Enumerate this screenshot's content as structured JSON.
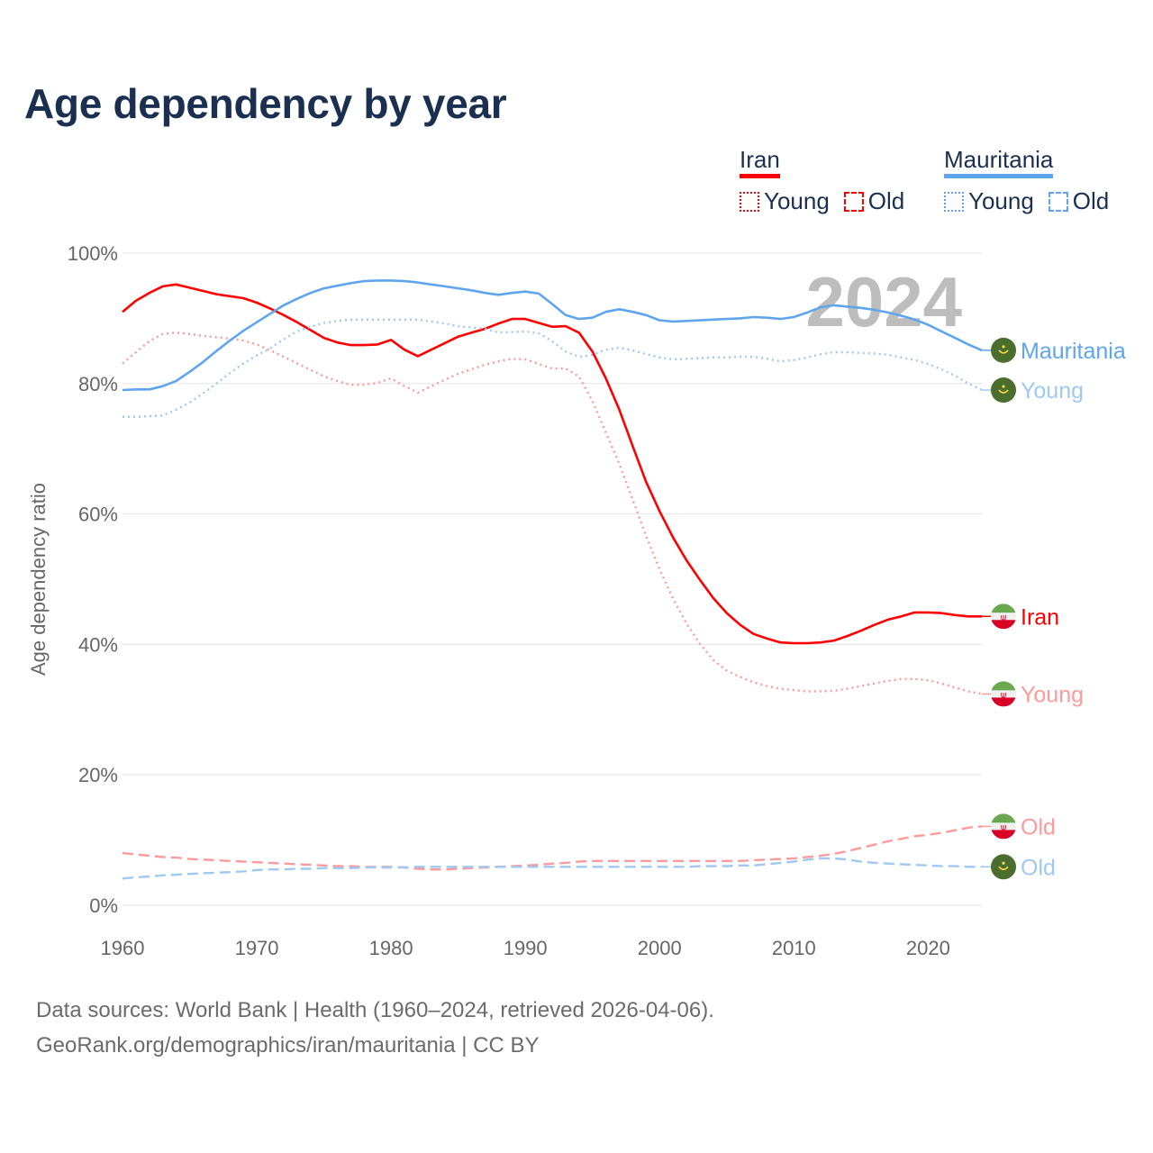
{
  "title": "Age dependency by year",
  "legend": {
    "groups": [
      {
        "name": "Iran",
        "color": "#ff0000",
        "items": [
          "Young",
          "Old"
        ]
      },
      {
        "name": "Mauritania",
        "color": "#5ea5ee",
        "items": [
          "Young",
          "Old"
        ]
      }
    ]
  },
  "footer": {
    "line1": "Data sources: World Bank | Health (1960–2024, retrieved 2026-04-06).",
    "line2": "GeoRank.org/demographics/iran/mauritania | CC BY"
  },
  "chart_data": {
    "type": "line",
    "title": "Age dependency by year",
    "xlabel": "",
    "ylabel": "Age dependency ratio",
    "year_watermark": "2024",
    "xlim": [
      1960,
      2024
    ],
    "ylim": [
      0,
      100
    ],
    "x_ticks": [
      "1960",
      "1970",
      "1980",
      "1990",
      "2000",
      "2010",
      "2020"
    ],
    "y_ticks": [
      "0%",
      "20%",
      "40%",
      "60%",
      "80%",
      "100%"
    ],
    "grid": true,
    "legend_position": "top-right",
    "x_start": 1960,
    "series": [
      {
        "name": "Iran",
        "label": "Iran",
        "country": "Iran",
        "style": "solid",
        "color": "#ff0000",
        "values": [
          91.0,
          92.7,
          93.9,
          94.9,
          95.2,
          94.7,
          94.2,
          93.7,
          93.4,
          93.1,
          92.4,
          91.5,
          90.5,
          89.4,
          88.2,
          87.0,
          86.3,
          85.9,
          85.9,
          86.0,
          86.7,
          85.2,
          84.2,
          85.2,
          86.2,
          87.2,
          87.8,
          88.4,
          89.2,
          89.9,
          89.9,
          89.3,
          88.7,
          88.8,
          87.8,
          84.9,
          80.8,
          76.0,
          70.4,
          64.9,
          60.4,
          56.4,
          52.9,
          49.9,
          47.1,
          44.8,
          43.0,
          41.6,
          40.9,
          40.3,
          40.2,
          40.2,
          40.3,
          40.6,
          41.3,
          42.1,
          43.0,
          43.8,
          44.3,
          44.9,
          44.9,
          44.8,
          44.5,
          44.3,
          44.3
        ]
      },
      {
        "name": "Iran Young",
        "label": "Young",
        "country": "Iran",
        "style": "dotted",
        "color": "#ff9a9a",
        "values": [
          83.1,
          84.8,
          86.5,
          87.6,
          87.8,
          87.6,
          87.3,
          87.1,
          86.9,
          86.6,
          86.0,
          85.1,
          84.1,
          83.1,
          82.1,
          81.1,
          80.4,
          79.8,
          79.8,
          80.1,
          80.8,
          79.6,
          78.6,
          79.6,
          80.6,
          81.5,
          82.2,
          82.9,
          83.4,
          83.8,
          83.7,
          83.0,
          82.3,
          82.3,
          81.1,
          77.3,
          72.5,
          67.7,
          62.2,
          56.6,
          51.5,
          47.0,
          43.2,
          40.1,
          37.6,
          36.0,
          35.0,
          34.2,
          33.6,
          33.2,
          33.0,
          32.8,
          32.8,
          32.9,
          33.2,
          33.6,
          34.0,
          34.4,
          34.7,
          34.7,
          34.5,
          34.0,
          33.4,
          32.8,
          32.4
        ]
      },
      {
        "name": "Iran Old",
        "label": "Old",
        "country": "Iran",
        "style": "dashed",
        "color": "#ff9a9a",
        "values": [
          8.0,
          7.8,
          7.6,
          7.4,
          7.3,
          7.1,
          7.0,
          6.9,
          6.8,
          6.7,
          6.6,
          6.5,
          6.4,
          6.3,
          6.2,
          6.1,
          6.0,
          6.0,
          5.9,
          5.9,
          5.9,
          5.8,
          5.6,
          5.5,
          5.5,
          5.6,
          5.7,
          5.8,
          5.9,
          6.0,
          6.1,
          6.2,
          6.4,
          6.5,
          6.7,
          6.8,
          6.8,
          6.8,
          6.8,
          6.8,
          6.8,
          6.8,
          6.8,
          6.8,
          6.8,
          6.8,
          6.8,
          6.9,
          7.0,
          7.1,
          7.2,
          7.4,
          7.6,
          7.9,
          8.3,
          8.8,
          9.3,
          9.8,
          10.2,
          10.6,
          10.8,
          11.1,
          11.5,
          11.9,
          12.1
        ]
      },
      {
        "name": "Mauritania",
        "label": "Mauritania",
        "country": "Mauritania",
        "style": "solid",
        "color": "#5ea5ee",
        "values": [
          79.0,
          79.1,
          79.1,
          79.6,
          80.4,
          81.8,
          83.3,
          85.0,
          86.6,
          88.1,
          89.4,
          90.7,
          92.0,
          93.0,
          93.9,
          94.6,
          95.0,
          95.4,
          95.7,
          95.8,
          95.8,
          95.7,
          95.5,
          95.2,
          94.9,
          94.6,
          94.3,
          93.9,
          93.6,
          93.9,
          94.1,
          93.8,
          92.2,
          90.5,
          89.9,
          90.1,
          91.0,
          91.4,
          91.0,
          90.5,
          89.7,
          89.5,
          89.6,
          89.7,
          89.8,
          89.9,
          90.0,
          90.2,
          90.1,
          89.9,
          90.2,
          90.9,
          91.7,
          92.0,
          91.8,
          91.6,
          91.3,
          90.9,
          90.4,
          89.8,
          89.0,
          88.0,
          87.0,
          86.0,
          85.1
        ]
      },
      {
        "name": "Mauritania Young",
        "label": "Young",
        "country": "Mauritania",
        "style": "dotted",
        "color": "#9fc8f2",
        "values": [
          74.9,
          74.9,
          75.0,
          75.1,
          76.0,
          77.1,
          78.5,
          80.0,
          81.6,
          83.1,
          84.3,
          85.4,
          86.8,
          88.0,
          88.7,
          89.3,
          89.6,
          89.8,
          89.8,
          89.8,
          89.8,
          89.8,
          89.8,
          89.5,
          89.2,
          88.8,
          88.6,
          88.4,
          87.8,
          87.9,
          88.0,
          87.7,
          86.5,
          84.9,
          84.1,
          84.4,
          85.2,
          85.5,
          85.1,
          84.5,
          84.0,
          83.7,
          83.8,
          83.9,
          84.0,
          84.0,
          84.1,
          84.1,
          83.8,
          83.4,
          83.6,
          84.0,
          84.5,
          84.8,
          84.8,
          84.7,
          84.6,
          84.4,
          84.0,
          83.6,
          83.0,
          82.2,
          81.2,
          80.0,
          79.0
        ]
      },
      {
        "name": "Mauritania Old",
        "label": "Old",
        "country": "Mauritania",
        "style": "dashed",
        "color": "#9fc8f2",
        "values": [
          4.1,
          4.3,
          4.4,
          4.6,
          4.7,
          4.8,
          4.9,
          5.0,
          5.1,
          5.2,
          5.4,
          5.5,
          5.5,
          5.6,
          5.6,
          5.7,
          5.7,
          5.7,
          5.8,
          5.8,
          5.8,
          5.8,
          5.9,
          5.9,
          5.9,
          5.9,
          5.9,
          5.9,
          5.9,
          5.9,
          5.9,
          5.9,
          5.9,
          5.9,
          5.9,
          5.9,
          5.9,
          5.9,
          5.9,
          5.9,
          5.9,
          5.9,
          5.9,
          6.0,
          6.0,
          6.0,
          6.1,
          6.1,
          6.3,
          6.5,
          6.7,
          7.0,
          7.2,
          7.2,
          7.0,
          6.7,
          6.5,
          6.4,
          6.3,
          6.2,
          6.1,
          6.0,
          6.0,
          5.9,
          5.9
        ]
      }
    ]
  }
}
